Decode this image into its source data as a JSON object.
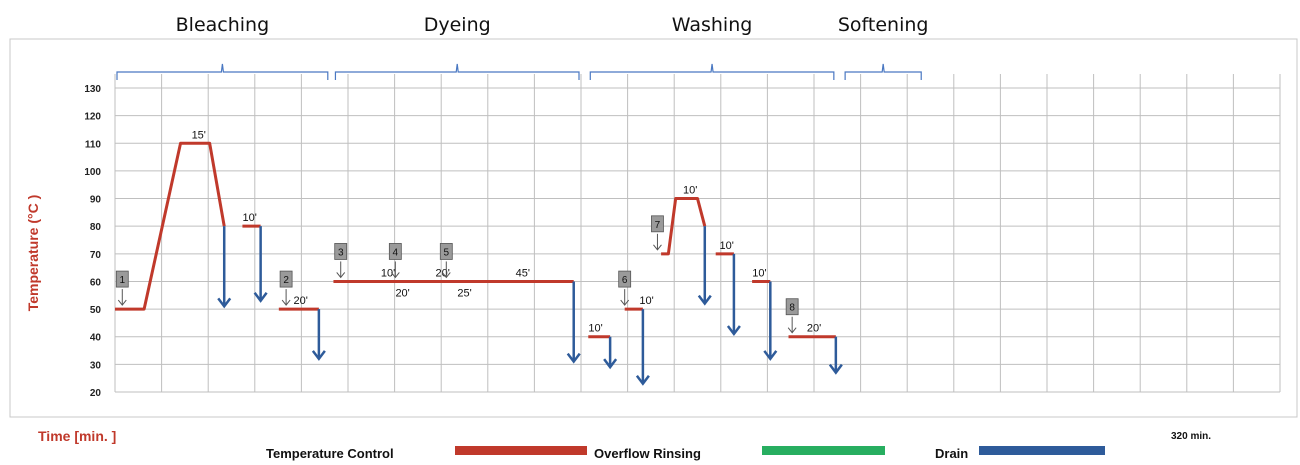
{
  "chart_data": {
    "type": "line",
    "ylabel": "Temperature (°C )",
    "xlabel": "Time [min. ]",
    "total_label": "320 min.",
    "yticks": [
      130,
      120,
      110,
      100,
      90,
      80,
      70,
      60,
      50,
      40,
      30,
      20
    ],
    "ylim": [
      20,
      130
    ],
    "xlim": [
      0,
      320
    ],
    "grid": true,
    "phases": [
      {
        "label": "Bleaching",
        "from": 0,
        "to": 59
      },
      {
        "label": "Dyeing",
        "from": 60,
        "to": 128
      },
      {
        "label": "Washing",
        "from": 130,
        "to": 198
      },
      {
        "label": "Softening",
        "from": 200,
        "to": 222
      }
    ],
    "legend": [
      {
        "label": "Temperature Control",
        "color": "#c0392b"
      },
      {
        "label": "Overflow Rinsing",
        "color": "#27ae60"
      },
      {
        "label": "Drain",
        "color": "#2e5b9a"
      }
    ],
    "series": [
      {
        "name": "Temperature Control",
        "color": "#c0392b",
        "segments": [
          [
            [
              0,
              50
            ],
            [
              8,
              50
            ],
            [
              18,
              110
            ],
            [
              26,
              110
            ],
            [
              30,
              80
            ]
          ],
          [
            [
              35,
              80
            ],
            [
              40,
              80
            ]
          ],
          [
            [
              45,
              50
            ],
            [
              56,
              50
            ]
          ],
          [
            [
              60,
              60
            ],
            [
              126,
              60
            ]
          ],
          [
            [
              130,
              40
            ],
            [
              136,
              40
            ]
          ],
          [
            [
              140,
              50
            ],
            [
              145,
              50
            ]
          ],
          [
            [
              150,
              70
            ],
            [
              152,
              70
            ],
            [
              154,
              90
            ],
            [
              160,
              90
            ],
            [
              162,
              80
            ]
          ],
          [
            [
              165,
              70
            ],
            [
              170,
              70
            ]
          ],
          [
            [
              175,
              60
            ],
            [
              180,
              60
            ]
          ],
          [
            [
              185,
              40
            ],
            [
              198,
              40
            ]
          ]
        ]
      },
      {
        "name": "Drain",
        "color": "#2e5b9a",
        "arrows": [
          [
            30,
            80,
            51
          ],
          [
            40,
            80,
            53
          ],
          [
            56,
            50,
            32
          ],
          [
            126,
            60,
            31
          ],
          [
            136,
            40,
            29
          ],
          [
            145,
            50,
            23
          ],
          [
            162,
            80,
            52
          ],
          [
            170,
            70,
            41
          ],
          [
            180,
            60,
            32
          ],
          [
            198,
            40,
            27
          ]
        ]
      }
    ],
    "durations": [
      {
        "text": "15'",
        "x": 23,
        "y": 110
      },
      {
        "text": "10'",
        "x": 37,
        "y": 80
      },
      {
        "text": "20'",
        "x": 51,
        "y": 50
      },
      {
        "text": "10'",
        "x": 75,
        "y": 60
      },
      {
        "text": "20'",
        "x": 79,
        "y": 60,
        "below": true
      },
      {
        "text": "20'",
        "x": 90,
        "y": 60
      },
      {
        "text": "25'",
        "x": 96,
        "y": 60,
        "below": true
      },
      {
        "text": "45'",
        "x": 112,
        "y": 60
      },
      {
        "text": "10'",
        "x": 132,
        "y": 40
      },
      {
        "text": "10'",
        "x": 146,
        "y": 50
      },
      {
        "text": "10'",
        "x": 158,
        "y": 90
      },
      {
        "text": "10'",
        "x": 168,
        "y": 70
      },
      {
        "text": "10'",
        "x": 177,
        "y": 60
      },
      {
        "text": "20'",
        "x": 192,
        "y": 40
      }
    ],
    "steps": [
      {
        "num": "1",
        "x": 2,
        "y": 50
      },
      {
        "num": "2",
        "x": 47,
        "y": 50
      },
      {
        "num": "3",
        "x": 62,
        "y": 60
      },
      {
        "num": "4",
        "x": 77,
        "y": 60
      },
      {
        "num": "5",
        "x": 91,
        "y": 60
      },
      {
        "num": "6",
        "x": 140,
        "y": 50
      },
      {
        "num": "7",
        "x": 149,
        "y": 70
      },
      {
        "num": "8",
        "x": 186,
        "y": 40
      }
    ]
  }
}
